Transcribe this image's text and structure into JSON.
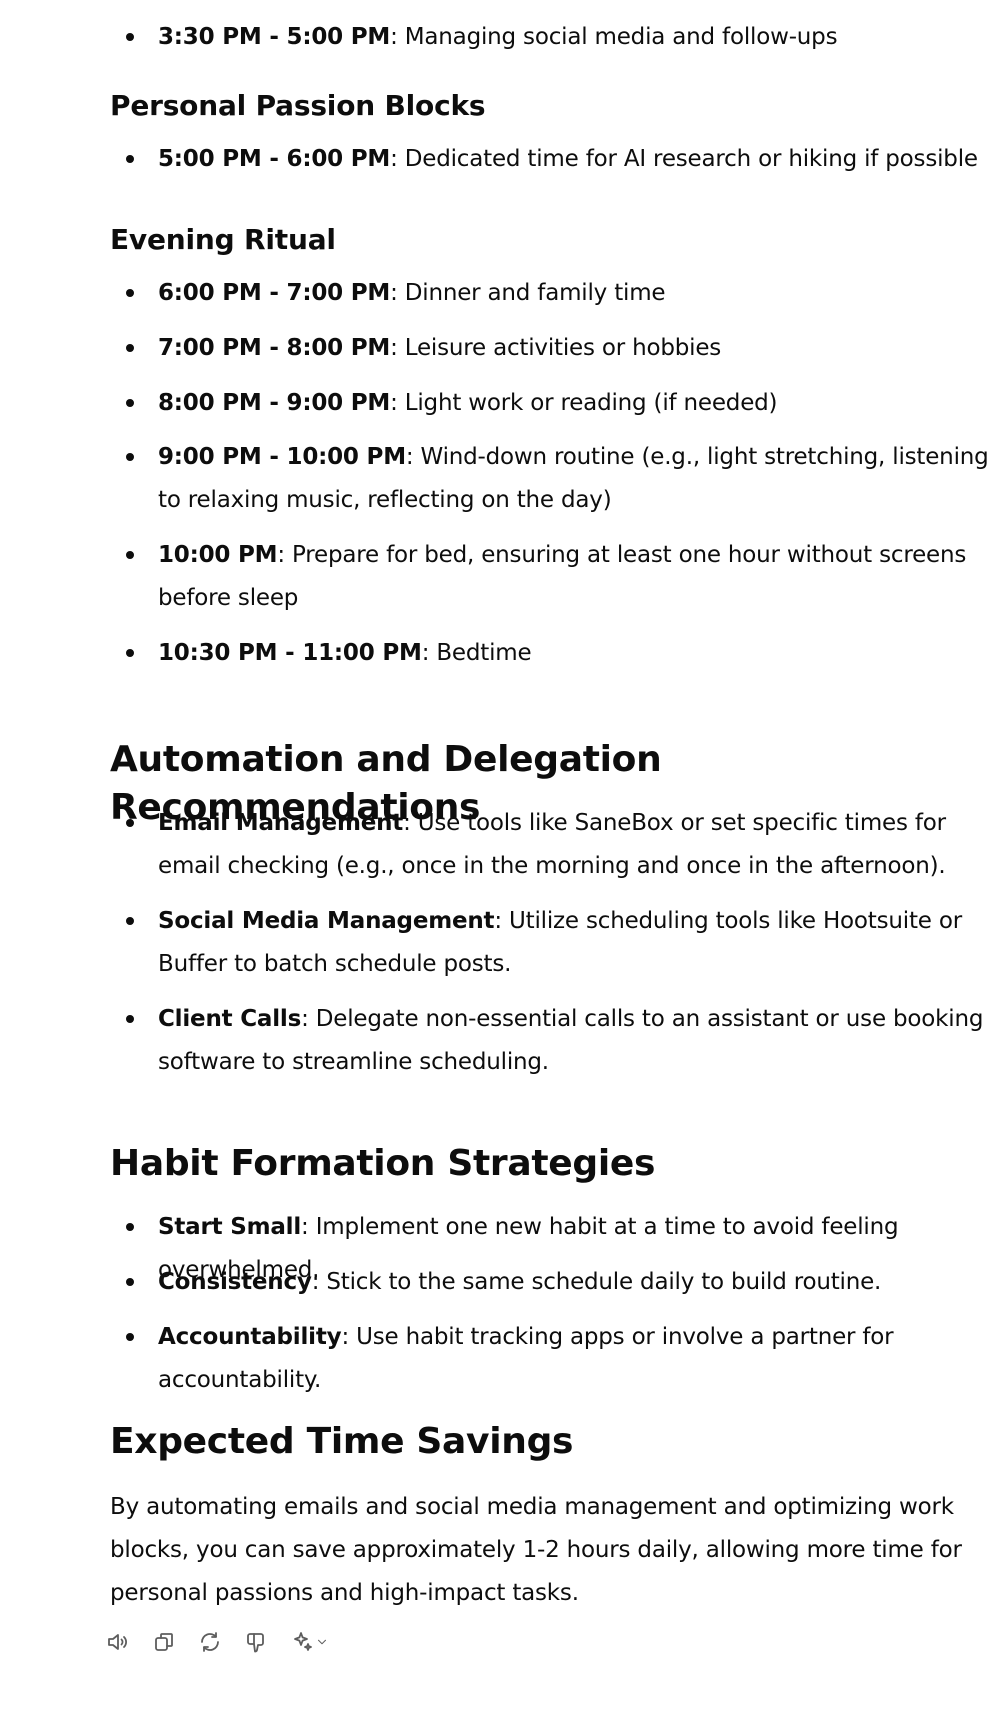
{
  "sections": {
    "top_list": [
      {
        "time": "3:30 PM - 5:00 PM",
        "text": ": Managing social media and follow-ups"
      }
    ],
    "personal": {
      "title": "Personal Passion Blocks",
      "items": [
        {
          "time": "5:00 PM - 6:00 PM",
          "text": ": Dedicated time for AI research or hiking if possible"
        }
      ]
    },
    "evening": {
      "title": "Evening Ritual",
      "items": [
        {
          "time": "6:00 PM - 7:00 PM",
          "text": ": Dinner and family time"
        },
        {
          "time": "7:00 PM - 8:00 PM",
          "text": ": Leisure activities or hobbies"
        },
        {
          "time": "8:00 PM - 9:00 PM",
          "text": ": Light work or reading (if needed)"
        },
        {
          "time": "9:00 PM - 10:00 PM",
          "text": ": Wind-down routine (e.g., light stretching, listening to relaxing music, reflecting on the day)"
        },
        {
          "time": "10:00 PM",
          "text": ": Prepare for bed, ensuring at least one hour without screens before sleep"
        },
        {
          "time": "10:30 PM - 11:00 PM",
          "text": ": Bedtime"
        }
      ]
    },
    "automation": {
      "title": "Automation and Delegation Recommendations",
      "items": [
        {
          "time": "Email Management",
          "text": ": Use tools like SaneBox or set specific times for email checking (e.g., once in the morning and once in the afternoon)."
        },
        {
          "time": "Social Media Management",
          "text": ": Utilize scheduling tools like Hootsuite or Buffer to batch schedule posts."
        },
        {
          "time": "Client Calls",
          "text": ": Delegate non-essential calls to an assistant or use booking software to streamline scheduling."
        }
      ]
    },
    "habits": {
      "title": "Habit Formation Strategies",
      "items": [
        {
          "time": "Start Small",
          "text": ": Implement one new habit at a time to avoid feeling overwhelmed."
        },
        {
          "time": "Consistency",
          "text": ": Stick to the same schedule daily to build routine."
        },
        {
          "time": "Accountability",
          "text": ": Use habit tracking apps or involve a partner for accountability."
        }
      ]
    },
    "savings": {
      "title": "Expected Time Savings",
      "text": "By automating emails and social media management and optimizing work blocks, you can save approximately 1-2 hours daily, allowing more time for personal passions and high-impact tasks."
    }
  },
  "toolbar": {
    "icons": [
      "speaker-icon",
      "copy-icon",
      "regenerate-icon",
      "thumbs-down-icon",
      "sparkle-model-icon"
    ]
  }
}
